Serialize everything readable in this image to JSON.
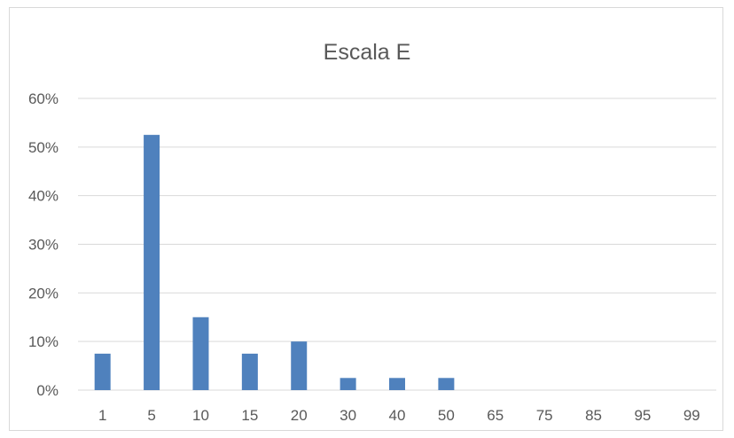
{
  "chart_data": {
    "type": "bar",
    "title": "Escala E",
    "xlabel": "",
    "ylabel": "",
    "categories": [
      "1",
      "5",
      "10",
      "15",
      "20",
      "30",
      "40",
      "50",
      "65",
      "75",
      "85",
      "95",
      "99"
    ],
    "values": [
      7.5,
      52.5,
      15,
      7.5,
      10,
      2.5,
      2.5,
      2.5,
      0,
      0,
      0,
      0,
      0
    ],
    "value_unit": "%",
    "ylim": [
      0,
      60
    ],
    "yticks": [
      0,
      10,
      20,
      30,
      40,
      50,
      60
    ],
    "ytick_labels": [
      "0%",
      "10%",
      "20%",
      "30%",
      "40%",
      "50%",
      "60%"
    ],
    "grid": true,
    "legend": "none",
    "bar_color": "#4f81bd",
    "grid_color": "#d9d9d9"
  }
}
